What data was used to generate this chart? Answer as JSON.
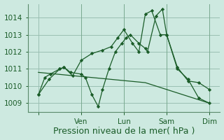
{
  "background_color": "#cde9e0",
  "grid_color": "#9abfb2",
  "line_color": "#1a5c28",
  "xlabel": "Pression niveau de la mer( hPa )",
  "xlabel_fontsize": 9,
  "ylim": [
    1008.5,
    1014.8
  ],
  "yticks": [
    1009,
    1010,
    1011,
    1012,
    1013,
    1014
  ],
  "xlim": [
    -0.5,
    8.5
  ],
  "x_tick_positions": [
    0,
    2,
    4,
    6,
    8
  ],
  "x_tick_labels": [
    "",
    "Ven",
    "Lun",
    "Sam",
    "Dim"
  ],
  "series1_x": [
    0.0,
    0.3,
    0.55,
    1.0,
    1.2,
    1.5,
    2.0,
    2.2,
    2.5,
    2.8,
    3.0,
    3.3,
    3.6,
    3.9,
    4.1,
    4.3,
    4.7,
    5.0,
    5.1,
    5.5,
    5.8,
    6.0,
    6.5,
    7.0,
    7.5,
    8.0
  ],
  "series1_y": [
    1009.5,
    1010.5,
    1010.7,
    1011.0,
    1011.1,
    1010.8,
    1010.7,
    1010.5,
    1009.5,
    1008.8,
    1009.8,
    1011.0,
    1012.0,
    1012.5,
    1012.8,
    1013.0,
    1012.5,
    1012.2,
    1012.0,
    1014.1,
    1014.5,
    1013.0,
    1011.0,
    1010.4,
    1009.3,
    1009.0
  ],
  "series2_x": [
    0.0,
    0.5,
    1.0,
    1.2,
    1.6,
    2.0,
    2.5,
    3.0,
    3.4,
    3.7,
    4.0,
    4.4,
    4.7,
    5.0,
    5.3,
    5.7,
    6.0,
    6.5,
    7.0,
    7.5,
    8.0
  ],
  "series2_y": [
    1009.5,
    1010.4,
    1011.0,
    1011.1,
    1010.6,
    1011.5,
    1011.9,
    1012.1,
    1012.3,
    1012.8,
    1013.3,
    1012.5,
    1012.0,
    1014.2,
    1014.4,
    1013.0,
    1013.0,
    1011.1,
    1010.3,
    1010.2,
    1009.8
  ],
  "series3_x": [
    0.0,
    5.0,
    8.0
  ],
  "series3_y": [
    1010.8,
    1010.2,
    1009.0
  ]
}
